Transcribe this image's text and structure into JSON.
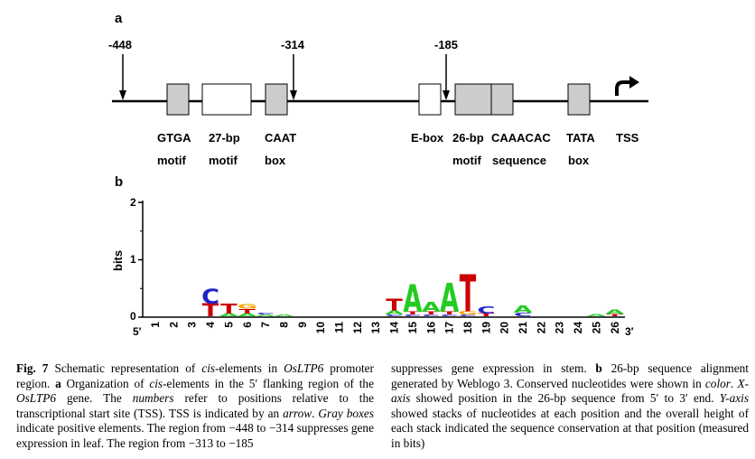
{
  "panel_a": {
    "label": "a",
    "positions": [
      {
        "text": "-448"
      },
      {
        "text": "-314"
      },
      {
        "text": "-185"
      }
    ],
    "elements": [
      {
        "line1": "GTGA",
        "line2": "motif",
        "fill": "#cccccc"
      },
      {
        "line1": "27-bp",
        "line2": "motif",
        "fill": "#ffffff"
      },
      {
        "line1": "CAAT",
        "line2": "box",
        "fill": "#cccccc"
      },
      {
        "line1": "E-box",
        "line2": "",
        "fill": "#ffffff"
      },
      {
        "line1": "26-bp",
        "line2": "motif",
        "fill": "#cccccc"
      },
      {
        "line1": "CAAACAC",
        "line2": "sequence",
        "fill": "#cccccc"
      },
      {
        "line1": "TATA",
        "line2": "box",
        "fill": "#cccccc"
      },
      {
        "line1": "TSS",
        "line2": ""
      }
    ]
  },
  "panel_b": {
    "label": "b",
    "ylabel": "bits",
    "yticks": [
      "2",
      "1",
      "0"
    ],
    "end5": "5′",
    "end3": "3′",
    "positions": [
      "1",
      "2",
      "3",
      "4",
      "5",
      "6",
      "7",
      "8",
      "9",
      "10",
      "11",
      "12",
      "13",
      "14",
      "15",
      "16",
      "17",
      "18",
      "19",
      "20",
      "21",
      "22",
      "23",
      "24",
      "25",
      "26"
    ],
    "colors": {
      "A": "#22cc22",
      "C": "#2222cc",
      "G": "#ffa500",
      "T": "#cc0000"
    }
  },
  "chart_data": {
    "type": "sequence-logo",
    "ylabel": "bits",
    "ylim": [
      0,
      2
    ],
    "x": [
      1,
      2,
      3,
      4,
      5,
      6,
      7,
      8,
      9,
      10,
      11,
      12,
      13,
      14,
      15,
      16,
      17,
      18,
      19,
      20,
      21,
      22,
      23,
      24,
      25,
      26
    ],
    "stacks": [
      [],
      [],
      [],
      [
        {
          "letter": "T",
          "bits": 0.22
        },
        {
          "letter": "C",
          "bits": 0.26
        }
      ],
      [
        {
          "letter": "A",
          "bits": 0.05
        },
        {
          "letter": "T",
          "bits": 0.17
        }
      ],
      [
        {
          "letter": "A",
          "bits": 0.05
        },
        {
          "letter": "T",
          "bits": 0.08
        },
        {
          "letter": "G",
          "bits": 0.08
        }
      ],
      [
        {
          "letter": "A",
          "bits": 0.03
        },
        {
          "letter": "C",
          "bits": 0.03
        }
      ],
      [
        {
          "letter": "A",
          "bits": 0.03
        }
      ],
      [],
      [],
      [],
      [],
      [],
      [
        {
          "letter": "C",
          "bits": 0.03
        },
        {
          "letter": "A",
          "bits": 0.07
        },
        {
          "letter": "T",
          "bits": 0.2
        }
      ],
      [
        {
          "letter": "C",
          "bits": 0.03
        },
        {
          "letter": "T",
          "bits": 0.05
        },
        {
          "letter": "A",
          "bits": 0.48
        }
      ],
      [
        {
          "letter": "C",
          "bits": 0.03
        },
        {
          "letter": "T",
          "bits": 0.05
        },
        {
          "letter": "A",
          "bits": 0.17
        }
      ],
      [
        {
          "letter": "C",
          "bits": 0.03
        },
        {
          "letter": "T",
          "bits": 0.05
        },
        {
          "letter": "A",
          "bits": 0.5
        }
      ],
      [
        {
          "letter": "C",
          "bits": 0.03
        },
        {
          "letter": "G",
          "bits": 0.06
        },
        {
          "letter": "T",
          "bits": 0.65
        }
      ],
      [
        {
          "letter": "T",
          "bits": 0.05
        },
        {
          "letter": "C",
          "bits": 0.12
        }
      ],
      [],
      [
        {
          "letter": "C",
          "bits": 0.06
        },
        {
          "letter": "A",
          "bits": 0.12
        }
      ],
      [],
      [],
      [],
      [
        {
          "letter": "A",
          "bits": 0.04
        }
      ],
      [
        {
          "letter": "T",
          "bits": 0.04
        },
        {
          "letter": "A",
          "bits": 0.08
        }
      ]
    ]
  },
  "caption": {
    "left": {
      "fig_label": "Fig. 7",
      "p1": " Schematic representation of ",
      "i1": "cis",
      "p2": "-elements in ",
      "i2": "OsLTP6",
      "p3": " promoter region. ",
      "b1": "a",
      "p4": " Organization of ",
      "i3": "cis",
      "p5": "-elements in the 5′ flanking region of the ",
      "i4": "OsLTP6",
      "p6": " gene. The ",
      "i5": "numbers",
      "p7": " refer to positions relative to the transcriptional start site (TSS). TSS is indicated by an ",
      "i6": "arrow",
      "p8": ". ",
      "i7": "Gray boxes",
      "p9": " indicate positive elements. The region from −448 to −314 suppresses gene expression in leaf. The region from −313 to −185"
    },
    "right": {
      "p1": "suppresses gene expression in stem. ",
      "b1": "b",
      "p2": " 26-bp sequence alignment generated by Weblogo 3. Conserved nucleotides were shown in ",
      "i1": "color",
      "p3": ". ",
      "i2": "X-axis",
      "p4": " showed position in the 26-bp sequence from 5′ to 3′ end. ",
      "i3": "Y-axis",
      "p5": " showed stacks of nucleotides at each position and the overall height of each stack indicated the sequence conservation at that position (measured in bits)"
    }
  }
}
